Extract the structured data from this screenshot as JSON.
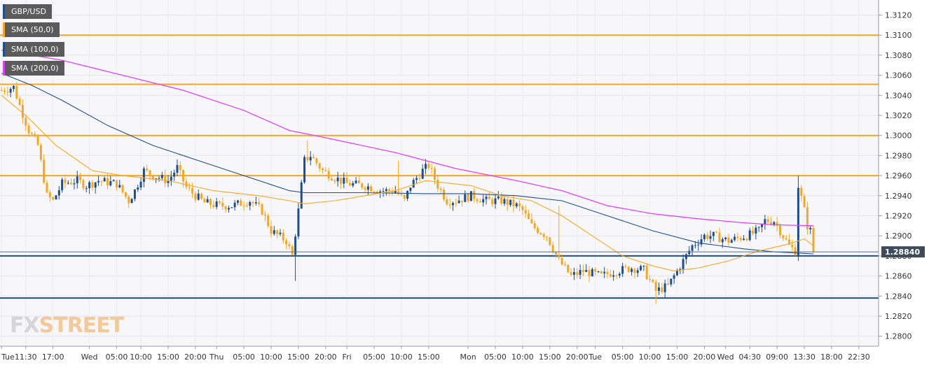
{
  "chart_data": {
    "type": "candlestick",
    "legend": [
      {
        "label": "GBP/USD",
        "color": "#1f4e8c"
      },
      {
        "label": "SMA (50,0)",
        "color": "#f5a623"
      },
      {
        "label": "SMA (100,0)",
        "color": "#1f4e8c"
      },
      {
        "label": "SMA (200,0)",
        "color": "#e040fb"
      }
    ],
    "y_axis": {
      "ylim": [
        1.279,
        1.3135
      ],
      "ticks": [
        "1.3120",
        "1.3100",
        "1.3080",
        "1.3060",
        "1.3040",
        "1.3020",
        "1.3000",
        "1.2980",
        "1.2960",
        "1.2940",
        "1.2920",
        "1.2900",
        "1.2880",
        "1.2860",
        "1.2840",
        "1.2820",
        "1.2800"
      ],
      "current_price": "1.28840",
      "current_value": 1.2884
    },
    "x_axis": {
      "ticks": [
        "Tue",
        "11:30",
        "17:00",
        "Wed",
        "05:00",
        "10:00",
        "15:00",
        "20:00",
        "Thu",
        "05:00",
        "10:00",
        "15:00",
        "20:00",
        "Fri",
        "05:00",
        "10:00",
        "15:00",
        "Mon",
        "05:00",
        "10:00",
        "15:00",
        "20:00",
        "Tue",
        "05:00",
        "10:00",
        "15:00",
        "20:00",
        "Wed",
        "04:30",
        "09:00",
        "13:30",
        "18:00",
        "22:30"
      ],
      "tick_index": [
        0,
        8,
        17,
        29,
        38,
        46,
        55,
        64,
        71,
        80,
        89,
        98,
        107,
        114,
        123,
        132,
        141,
        154,
        163,
        172,
        181,
        190,
        196,
        205,
        214,
        223,
        232,
        239,
        247,
        256,
        265,
        274,
        283
      ],
      "count": 290
    },
    "horizontal_levels": [
      {
        "value": 1.31,
        "color": "#f5a623"
      },
      {
        "value": 1.3051,
        "color": "#f5a623"
      },
      {
        "value": 1.3,
        "color": "#f5a623"
      },
      {
        "value": 1.296,
        "color": "#f5a623"
      },
      {
        "value": 1.288,
        "color": "#1f4e8c"
      },
      {
        "value": 1.2838,
        "color": "#1f4e8c"
      }
    ],
    "candles": {
      "anchors": [
        [
          0,
          1.3045
        ],
        [
          4,
          1.3048
        ],
        [
          6,
          1.303
        ],
        [
          9,
          1.3005
        ],
        [
          12,
          1.299
        ],
        [
          15,
          1.294
        ],
        [
          17,
          1.2935
        ],
        [
          20,
          1.2952
        ],
        [
          25,
          1.2955
        ],
        [
          28,
          1.295
        ],
        [
          32,
          1.2955
        ],
        [
          38,
          1.2952
        ],
        [
          42,
          1.2935
        ],
        [
          44,
          1.2945
        ],
        [
          47,
          1.2965
        ],
        [
          50,
          1.296
        ],
        [
          55,
          1.2955
        ],
        [
          58,
          1.2968
        ],
        [
          61,
          1.2948
        ],
        [
          64,
          1.294
        ],
        [
          67,
          1.2933
        ],
        [
          72,
          1.293
        ],
        [
          76,
          1.293
        ],
        [
          82,
          1.2935
        ],
        [
          86,
          1.2925
        ],
        [
          89,
          1.2905
        ],
        [
          94,
          1.2895
        ],
        [
          96,
          1.288
        ],
        [
          98,
          1.2925
        ],
        [
          100,
          1.2975
        ],
        [
          102,
          1.298
        ],
        [
          106,
          1.2965
        ],
        [
          110,
          1.2958
        ],
        [
          114,
          1.2952
        ],
        [
          120,
          1.295
        ],
        [
          125,
          1.2945
        ],
        [
          130,
          1.2945
        ],
        [
          133,
          1.2935
        ],
        [
          135,
          1.295
        ],
        [
          139,
          1.2965
        ],
        [
          141,
          1.297
        ],
        [
          144,
          1.295
        ],
        [
          147,
          1.2935
        ],
        [
          150,
          1.2935
        ],
        [
          155,
          1.294
        ],
        [
          160,
          1.2935
        ],
        [
          165,
          1.2935
        ],
        [
          170,
          1.293
        ],
        [
          172,
          1.2925
        ],
        [
          175,
          1.291
        ],
        [
          180,
          1.29
        ],
        [
          184,
          1.2875
        ],
        [
          188,
          1.286
        ],
        [
          192,
          1.2865
        ],
        [
          198,
          1.286
        ],
        [
          203,
          1.2865
        ],
        [
          208,
          1.2868
        ],
        [
          212,
          1.2866
        ],
        [
          216,
          1.2845
        ],
        [
          220,
          1.285
        ],
        [
          224,
          1.287
        ],
        [
          228,
          1.289
        ],
        [
          232,
          1.29
        ],
        [
          235,
          1.29
        ],
        [
          240,
          1.2895
        ],
        [
          246,
          1.29
        ],
        [
          250,
          1.2905
        ],
        [
          252,
          1.2915
        ],
        [
          255,
          1.2915
        ],
        [
          258,
          1.29
        ],
        [
          260,
          1.289
        ],
        [
          262,
          1.2885
        ],
        [
          263,
          1.295
        ],
        [
          265,
          1.2925
        ],
        [
          266,
          1.291
        ],
        [
          267,
          1.2905
        ],
        [
          268,
          1.289
        ]
      ],
      "spikes": [
        [
          97,
          1.2855,
          "low"
        ],
        [
          101,
          1.2995,
          "high"
        ],
        [
          131,
          1.2975,
          "high"
        ],
        [
          184,
          1.293,
          "high"
        ],
        [
          216,
          1.2832,
          "low"
        ],
        [
          263,
          1.296,
          "high"
        ],
        [
          263,
          1.2875,
          "low"
        ]
      ]
    },
    "sma_50": {
      "color": "#f5a623",
      "points": [
        [
          0,
          1.304
        ],
        [
          8,
          1.302
        ],
        [
          18,
          1.299
        ],
        [
          30,
          1.2965
        ],
        [
          40,
          1.296
        ],
        [
          55,
          1.2955
        ],
        [
          70,
          1.2945
        ],
        [
          85,
          1.294
        ],
        [
          95,
          1.2935
        ],
        [
          100,
          1.2932
        ],
        [
          110,
          1.2935
        ],
        [
          130,
          1.2945
        ],
        [
          140,
          1.2955
        ],
        [
          155,
          1.295
        ],
        [
          165,
          1.294
        ],
        [
          175,
          1.2935
        ],
        [
          185,
          1.292
        ],
        [
          195,
          1.29
        ],
        [
          205,
          1.288
        ],
        [
          215,
          1.287
        ],
        [
          222,
          1.2865
        ],
        [
          230,
          1.2868
        ],
        [
          240,
          1.2875
        ],
        [
          250,
          1.2885
        ],
        [
          260,
          1.2892
        ],
        [
          265,
          1.2897
        ],
        [
          268,
          1.289
        ]
      ]
    },
    "sma_100": {
      "color": "#1f4e8c",
      "points": [
        [
          0,
          1.3062
        ],
        [
          10,
          1.305
        ],
        [
          20,
          1.3035
        ],
        [
          35,
          1.301
        ],
        [
          50,
          1.299
        ],
        [
          65,
          1.2975
        ],
        [
          80,
          1.296
        ],
        [
          95,
          1.2945
        ],
        [
          100,
          1.2943
        ],
        [
          120,
          1.2943
        ],
        [
          140,
          1.2942
        ],
        [
          155,
          1.2942
        ],
        [
          170,
          1.294
        ],
        [
          185,
          1.2935
        ],
        [
          200,
          1.292
        ],
        [
          215,
          1.2905
        ],
        [
          230,
          1.2893
        ],
        [
          245,
          1.2887
        ],
        [
          255,
          1.2884
        ],
        [
          268,
          1.2882
        ]
      ]
    },
    "sma_200": {
      "color": "#e040fb",
      "points": [
        [
          0,
          1.3085
        ],
        [
          20,
          1.3075
        ],
        [
          40,
          1.306
        ],
        [
          60,
          1.3045
        ],
        [
          80,
          1.3025
        ],
        [
          95,
          1.3005
        ],
        [
          105,
          1.2999
        ],
        [
          130,
          1.2983
        ],
        [
          150,
          1.2967
        ],
        [
          170,
          1.2955
        ],
        [
          185,
          1.2945
        ],
        [
          200,
          1.293
        ],
        [
          215,
          1.2922
        ],
        [
          230,
          1.2917
        ],
        [
          245,
          1.2913
        ],
        [
          255,
          1.2911
        ],
        [
          268,
          1.291
        ]
      ]
    }
  },
  "watermark": {
    "part1": "FX",
    "part2": "STREET"
  }
}
